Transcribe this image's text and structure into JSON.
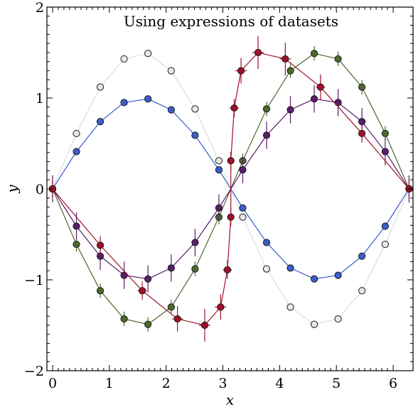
{
  "chart_data": {
    "type": "scatter",
    "title": "Using expressions of datasets",
    "xlabel": "x",
    "ylabel": "y",
    "xlim": [
      -0.1,
      6.35
    ],
    "ylim": [
      -2,
      2
    ],
    "xticks": [
      "0",
      "1",
      "2",
      "3",
      "4",
      "5",
      "6"
    ],
    "yticks": [
      "−2",
      "−1",
      "0",
      "1",
      "2"
    ],
    "grid": false,
    "legend": "none",
    "series": [
      {
        "color": "#dddddd",
        "markerFill": "#e8e8e8",
        "errorBars": false,
        "x": [
          0,
          0.42,
          0.84,
          1.26,
          1.68,
          2.09,
          2.51,
          2.93,
          3.35,
          3.77,
          4.19,
          4.61,
          5.03,
          5.45,
          5.86,
          6.28
        ],
        "y": [
          0,
          0.61,
          1.12,
          1.43,
          1.49,
          1.3,
          0.88,
          0.31,
          -0.31,
          -0.88,
          -1.3,
          -1.49,
          -1.43,
          -1.12,
          -0.61,
          0
        ]
      },
      {
        "color": "#3a5fcd",
        "markerFill": "#3a5fcd",
        "errorBars": false,
        "x": [
          0,
          0.42,
          0.84,
          1.26,
          1.68,
          2.09,
          2.51,
          2.93,
          3.35,
          3.77,
          4.19,
          4.61,
          5.03,
          5.45,
          5.86,
          6.28
        ],
        "y": [
          0,
          0.41,
          0.74,
          0.95,
          0.99,
          0.87,
          0.59,
          0.21,
          -0.21,
          -0.59,
          -0.87,
          -0.99,
          -0.95,
          -0.74,
          -0.41,
          0
        ]
      },
      {
        "color": "#4e6a2e",
        "markerFill": "#4e6a2e",
        "errorBars": true,
        "x": [
          0,
          0.42,
          0.84,
          1.26,
          1.68,
          2.09,
          2.51,
          2.93,
          3.35,
          3.77,
          4.19,
          4.61,
          5.03,
          5.45,
          5.86,
          6.28
        ],
        "y": [
          0,
          -0.61,
          -1.12,
          -1.43,
          -1.49,
          -1.3,
          -0.88,
          -0.31,
          0.31,
          0.88,
          1.3,
          1.49,
          1.43,
          1.12,
          0.61,
          0
        ],
        "yerr": [
          0.08,
          0.08,
          0.08,
          0.08,
          0.08,
          0.08,
          0.08,
          0.08,
          0.08,
          0.08,
          0.08,
          0.08,
          0.08,
          0.08,
          0.08,
          0.08
        ]
      },
      {
        "color": "#5a1d6b",
        "markerFill": "#5a1d6b",
        "errorBars": true,
        "x": [
          0,
          0.42,
          0.84,
          1.26,
          1.68,
          2.09,
          2.51,
          2.93,
          3.35,
          3.77,
          4.19,
          4.61,
          5.03,
          5.45,
          5.86,
          6.28
        ],
        "y": [
          0,
          -0.41,
          -0.74,
          -0.95,
          -0.99,
          -0.87,
          -0.59,
          -0.21,
          0.21,
          0.59,
          0.87,
          0.99,
          0.95,
          0.74,
          0.41,
          0
        ],
        "yerr": [
          0.15,
          0.15,
          0.15,
          0.15,
          0.15,
          0.15,
          0.15,
          0.15,
          0.15,
          0.15,
          0.15,
          0.15,
          0.15,
          0.15,
          0.15,
          0.15
        ]
      },
      {
        "color": "#a0102a",
        "markerFill": "#a0102a",
        "errorBars": true,
        "x": [
          0,
          0.84,
          1.58,
          2.2,
          2.68,
          2.96,
          3.08,
          3.14,
          3.14,
          3.2,
          3.32,
          3.62,
          4.1,
          4.72,
          5.45,
          6.28
        ],
        "y": [
          0,
          -0.62,
          -1.12,
          -1.43,
          -1.5,
          -1.3,
          -0.89,
          -0.31,
          0.31,
          0.89,
          1.3,
          1.5,
          1.43,
          1.12,
          0.61,
          0
        ],
        "yerr": [
          0.1,
          0.1,
          0.1,
          0.14,
          0.18,
          0.14,
          0.1,
          0.1,
          0.1,
          0.1,
          0.14,
          0.18,
          0.18,
          0.14,
          0.1,
          0.1
        ],
        "xerr": [
          0,
          0.05,
          0.08,
          0.1,
          0.1,
          0.1,
          0.08,
          0.06,
          0.06,
          0.08,
          0.1,
          0.1,
          0.1,
          0.08,
          0.05,
          0
        ]
      }
    ]
  }
}
